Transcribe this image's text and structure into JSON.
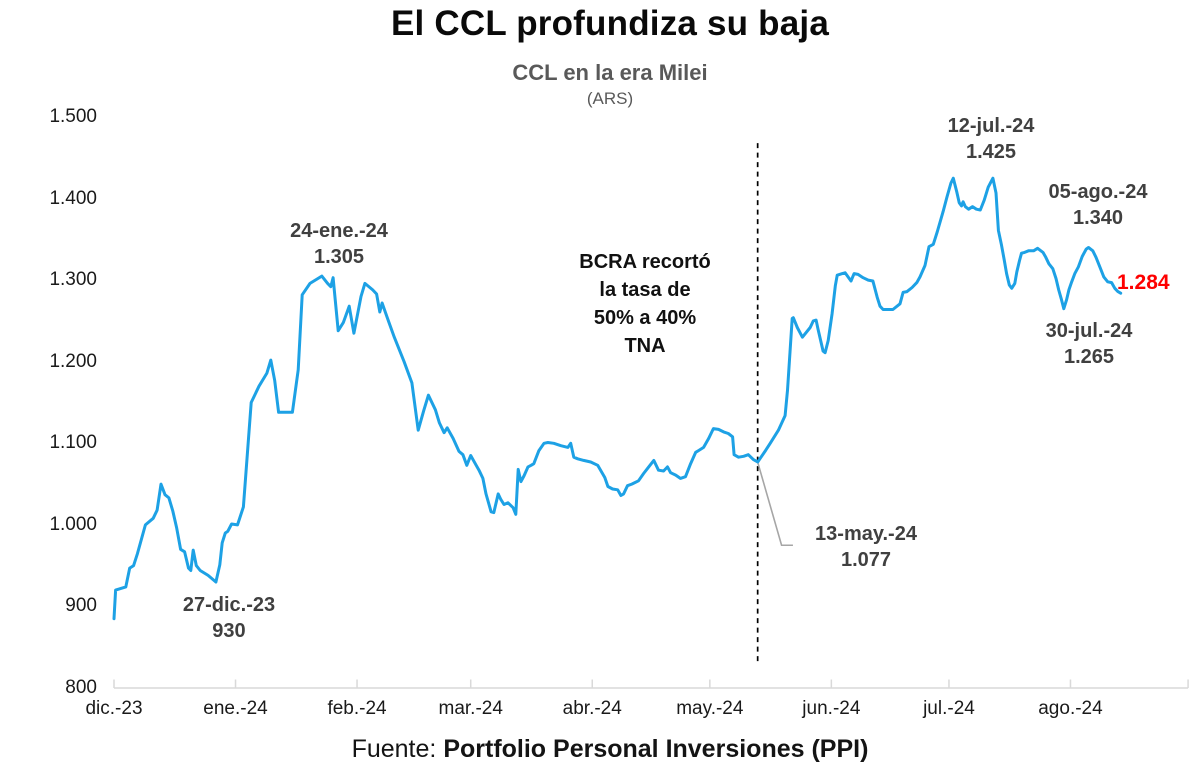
{
  "header": {
    "title": "El CCL profundiza su baja",
    "subtitle": "CCL en la era Milei",
    "unit": "(ARS)"
  },
  "footer": {
    "prefix": "Fuente: ",
    "source": "Portfolio Personal Inversiones (PPI)"
  },
  "annotations": {
    "dec27": {
      "date": "27-dic.-23",
      "value": "930"
    },
    "ene24": {
      "date": "24-ene.-24",
      "value": "1.305"
    },
    "may13": {
      "date": "13-may.-24",
      "value": "1.077"
    },
    "jul12": {
      "date": "12-jul.-24",
      "value": "1.425"
    },
    "jul30": {
      "date": "30-jul.-24",
      "value": "1.265"
    },
    "ago05": {
      "date": "05-ago.-24",
      "value": "1.340"
    },
    "bcra": {
      "lines": [
        "BCRA recortó",
        "la tasa de",
        "50% a 40%",
        "TNA"
      ]
    },
    "last": {
      "value": "1.284",
      "color": "#fe0000"
    }
  },
  "chart_data": {
    "type": "line",
    "title": "CCL en la era Milei (ARS)",
    "xlabel": "",
    "ylabel": "ARS",
    "x_unit": "days since 2023-12-01",
    "xlim": [
      0,
      274
    ],
    "ylim": [
      800,
      1500
    ],
    "grid": false,
    "legend": "none",
    "axis_color": "#d9d9d9",
    "y_ticks": [
      {
        "value": 1500,
        "label": "1.500"
      },
      {
        "value": 1400,
        "label": "1.400"
      },
      {
        "value": 1300,
        "label": "1.300"
      },
      {
        "value": 1200,
        "label": "1.200"
      },
      {
        "value": 1100,
        "label": "1.100"
      },
      {
        "value": 1000,
        "label": "1.000"
      },
      {
        "value": 900,
        "label": "900"
      },
      {
        "value": 800,
        "label": "800"
      }
    ],
    "x_ticks": [
      {
        "day": 0,
        "label": "dic.-23"
      },
      {
        "day": 31,
        "label": "ene.-24"
      },
      {
        "day": 62,
        "label": "feb.-24"
      },
      {
        "day": 91,
        "label": "mar.-24"
      },
      {
        "day": 122,
        "label": "abr.-24"
      },
      {
        "day": 152,
        "label": "may.-24"
      },
      {
        "day": 183,
        "label": "jun.-24"
      },
      {
        "day": 213,
        "label": "jul.-24"
      },
      {
        "day": 244,
        "label": "ago.-24"
      },
      {
        "day": 274,
        "label": ""
      }
    ],
    "event_line": {
      "day": 164.2,
      "v_from": 831,
      "v_to": 1468,
      "color": "#000000",
      "style": "dashed"
    },
    "leader": {
      "points": [
        [
          164.2,
          1077
        ],
        [
          170.3,
          975
        ],
        [
          173.2,
          975
        ]
      ],
      "color": "#a6a6a6"
    },
    "key_points": [
      {
        "date": "27-dic.-23",
        "value": 930
      },
      {
        "date": "24-ene.-24",
        "value": 1305
      },
      {
        "date": "13-may.-24",
        "value": 1077
      },
      {
        "date": "12-jul.-24",
        "value": 1425
      },
      {
        "date": "30-jul.-24",
        "value": 1265
      },
      {
        "date": "05-ago.-24",
        "value": 1340
      },
      {
        "date": "last",
        "value": 1284
      }
    ],
    "series": [
      {
        "name": "CCL",
        "color": "#1da1e5",
        "points": [
          [
            0,
            885
          ],
          [
            0.4,
            920
          ],
          [
            3,
            924
          ],
          [
            4,
            947
          ],
          [
            5,
            950
          ],
          [
            6,
            965
          ],
          [
            8,
            1000
          ],
          [
            10,
            1008
          ],
          [
            11,
            1018
          ],
          [
            12,
            1050
          ],
          [
            13,
            1037
          ],
          [
            14,
            1033
          ],
          [
            15,
            1017
          ],
          [
            16,
            996
          ],
          [
            17,
            970
          ],
          [
            18,
            967
          ],
          [
            19,
            947
          ],
          [
            19.6,
            944
          ],
          [
            20.2,
            969
          ],
          [
            21,
            950
          ],
          [
            22,
            944
          ],
          [
            24,
            938
          ],
          [
            26,
            930
          ],
          [
            27,
            951
          ],
          [
            27.6,
            978
          ],
          [
            28.4,
            990
          ],
          [
            29,
            992
          ],
          [
            30,
            1001
          ],
          [
            31.5,
            1000
          ],
          [
            33,
            1022
          ],
          [
            35,
            1150
          ],
          [
            37,
            1170
          ],
          [
            39,
            1186
          ],
          [
            40,
            1202
          ],
          [
            41,
            1177
          ],
          [
            42,
            1138
          ],
          [
            45.5,
            1138
          ],
          [
            47,
            1190
          ],
          [
            48,
            1282
          ],
          [
            50,
            1296
          ],
          [
            53,
            1305
          ],
          [
            54.5,
            1296
          ],
          [
            55.3,
            1292
          ],
          [
            55.9,
            1303
          ],
          [
            57.2,
            1238
          ],
          [
            58.5,
            1248
          ],
          [
            60,
            1268
          ],
          [
            61.2,
            1235
          ],
          [
            63,
            1280
          ],
          [
            64,
            1296
          ],
          [
            66,
            1288
          ],
          [
            67,
            1283
          ],
          [
            67.8,
            1261
          ],
          [
            68.4,
            1272
          ],
          [
            70,
            1250
          ],
          [
            71.5,
            1230
          ],
          [
            74,
            1200
          ],
          [
            76,
            1174
          ],
          [
            77.6,
            1116
          ],
          [
            79,
            1140
          ],
          [
            80.2,
            1159
          ],
          [
            82,
            1141
          ],
          [
            83,
            1125
          ],
          [
            84.2,
            1113
          ],
          [
            85,
            1119
          ],
          [
            86.5,
            1106
          ],
          [
            88,
            1090
          ],
          [
            89,
            1086
          ],
          [
            90,
            1073
          ],
          [
            91,
            1085
          ],
          [
            92.4,
            1073
          ],
          [
            93.1,
            1067
          ],
          [
            94.1,
            1057
          ],
          [
            94.9,
            1038
          ],
          [
            96.2,
            1016
          ],
          [
            96.9,
            1015
          ],
          [
            98,
            1038
          ],
          [
            98.7,
            1031
          ],
          [
            99.5,
            1025
          ],
          [
            100.5,
            1027
          ],
          [
            101.8,
            1021
          ],
          [
            102.5,
            1013
          ],
          [
            103.1,
            1068
          ],
          [
            103.8,
            1053
          ],
          [
            104.6,
            1060
          ],
          [
            105.6,
            1071
          ],
          [
            106.4,
            1073
          ],
          [
            107.1,
            1075
          ],
          [
            108.4,
            1091
          ],
          [
            109.7,
            1100
          ],
          [
            110.7,
            1101
          ],
          [
            112.2,
            1100
          ],
          [
            114,
            1097
          ],
          [
            115.8,
            1095
          ],
          [
            116.5,
            1100
          ],
          [
            117.3,
            1083
          ],
          [
            118.3,
            1081
          ],
          [
            119.8,
            1079
          ],
          [
            121.6,
            1077
          ],
          [
            123.4,
            1073
          ],
          [
            125.2,
            1058
          ],
          [
            126,
            1047
          ],
          [
            127.2,
            1044
          ],
          [
            128.5,
            1043
          ],
          [
            129.3,
            1036
          ],
          [
            130,
            1038
          ],
          [
            131,
            1048
          ],
          [
            132.1,
            1050
          ],
          [
            133.8,
            1054
          ],
          [
            135.1,
            1063
          ],
          [
            136.4,
            1071
          ],
          [
            137.7,
            1079
          ],
          [
            138.9,
            1067
          ],
          [
            140.2,
            1066
          ],
          [
            141.2,
            1071
          ],
          [
            142,
            1064
          ],
          [
            143.3,
            1061
          ],
          [
            144.5,
            1057
          ],
          [
            145.8,
            1059
          ],
          [
            147.1,
            1075
          ],
          [
            148.4,
            1089
          ],
          [
            149.1,
            1091
          ],
          [
            150.4,
            1095
          ],
          [
            151.7,
            1106
          ],
          [
            152.9,
            1118
          ],
          [
            154.2,
            1117
          ],
          [
            155.5,
            1114
          ],
          [
            156.7,
            1112
          ],
          [
            157.8,
            1108
          ],
          [
            158.2,
            1086
          ],
          [
            159.3,
            1083
          ],
          [
            160.6,
            1084
          ],
          [
            161.8,
            1086
          ],
          [
            163.1,
            1080
          ],
          [
            164.2,
            1077
          ],
          [
            166.2,
            1091
          ],
          [
            167.4,
            1100
          ],
          [
            169.5,
            1116
          ],
          [
            171.2,
            1134
          ],
          [
            171.8,
            1165
          ],
          [
            173,
            1253
          ],
          [
            173.3,
            1254
          ],
          [
            174.3,
            1242
          ],
          [
            175.6,
            1230
          ],
          [
            177.6,
            1242
          ],
          [
            178.4,
            1250
          ],
          [
            179.1,
            1251
          ],
          [
            179.6,
            1240
          ],
          [
            180.9,
            1213
          ],
          [
            181.4,
            1211
          ],
          [
            182.2,
            1226
          ],
          [
            183.2,
            1259
          ],
          [
            184,
            1293
          ],
          [
            184.5,
            1306
          ],
          [
            185.8,
            1308
          ],
          [
            186.5,
            1309
          ],
          [
            188,
            1299
          ],
          [
            188.8,
            1308
          ],
          [
            189.8,
            1307
          ],
          [
            191.1,
            1303
          ],
          [
            192.4,
            1300
          ],
          [
            193.6,
            1299
          ],
          [
            194.7,
            1279
          ],
          [
            195.4,
            1268
          ],
          [
            196.2,
            1264
          ],
          [
            198.7,
            1264
          ],
          [
            200.5,
            1271
          ],
          [
            201.3,
            1285
          ],
          [
            202.3,
            1286
          ],
          [
            203.6,
            1291
          ],
          [
            204.8,
            1297
          ],
          [
            205.6,
            1304
          ],
          [
            206.9,
            1318
          ],
          [
            207.9,
            1341
          ],
          [
            209,
            1344
          ],
          [
            210,
            1359
          ],
          [
            211.5,
            1384
          ],
          [
            212.5,
            1402
          ],
          [
            213.5,
            1419
          ],
          [
            214.1,
            1425
          ],
          [
            215,
            1408
          ],
          [
            215.6,
            1395
          ],
          [
            216.2,
            1391
          ],
          [
            216.6,
            1396
          ],
          [
            217.2,
            1390
          ],
          [
            218,
            1387
          ],
          [
            219,
            1390
          ],
          [
            220,
            1387
          ],
          [
            221,
            1386
          ],
          [
            222,
            1398
          ],
          [
            223,
            1414
          ],
          [
            224.2,
            1425
          ],
          [
            225,
            1407
          ],
          [
            225.6,
            1361
          ],
          [
            226.4,
            1343
          ],
          [
            227.1,
            1325
          ],
          [
            227.7,
            1308
          ],
          [
            228.4,
            1294
          ],
          [
            229,
            1290
          ],
          [
            229.8,
            1296
          ],
          [
            230.3,
            1310
          ],
          [
            231,
            1324
          ],
          [
            231.5,
            1333
          ],
          [
            232.3,
            1334
          ],
          [
            233.3,
            1336
          ],
          [
            234.6,
            1336
          ],
          [
            235.6,
            1339
          ],
          [
            237,
            1334
          ],
          [
            237.7,
            1328
          ],
          [
            238.5,
            1320
          ],
          [
            239.5,
            1314
          ],
          [
            240.3,
            1302
          ],
          [
            241,
            1288
          ],
          [
            241.7,
            1276
          ],
          [
            242.3,
            1265
          ],
          [
            243,
            1276
          ],
          [
            243.6,
            1288
          ],
          [
            244.3,
            1298
          ],
          [
            245.1,
            1308
          ],
          [
            246,
            1316
          ],
          [
            247,
            1329
          ],
          [
            248,
            1338
          ],
          [
            248.6,
            1340
          ],
          [
            249.7,
            1336
          ],
          [
            250.5,
            1328
          ],
          [
            251.5,
            1316
          ],
          [
            252.5,
            1304
          ],
          [
            253.5,
            1298
          ],
          [
            254.5,
            1297
          ],
          [
            255.3,
            1290
          ],
          [
            256.1,
            1286
          ],
          [
            256.8,
            1284
          ]
        ]
      }
    ]
  }
}
